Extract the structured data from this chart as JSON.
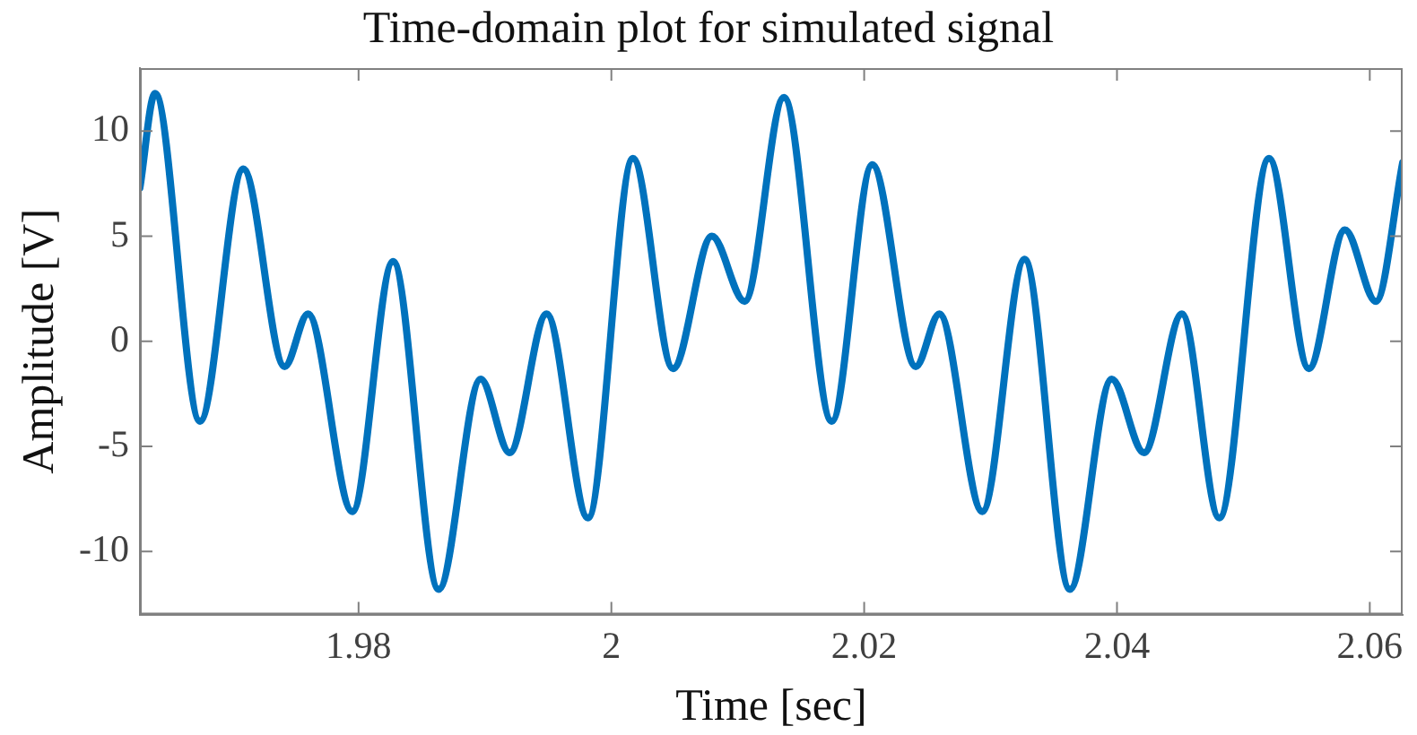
{
  "chart_data": {
    "type": "line",
    "title": "Time-domain plot for simulated signal",
    "xlabel": "Time [sec]",
    "ylabel": "Amplitude [V]",
    "x": [
      1.9627,
      1.9639,
      1.96746,
      1.97088,
      1.97415,
      1.976,
      1.97951,
      1.98273,
      1.98634,
      1.98966,
      1.99195,
      1.99488,
      1.99815,
      2.00171,
      2.00488,
      2.00795,
      2.01055,
      2.01365,
      2.01744,
      2.02064,
      2.02408,
      2.02595,
      2.02935,
      2.03269,
      2.03628,
      2.03958,
      2.04214,
      2.04514,
      2.04809,
      2.05203,
      2.05518,
      2.05803,
      2.06049,
      2.0626
    ],
    "series": [
      {
        "color": "#0072bd",
        "values": [
          7.3,
          11.8,
          -3.8,
          8.2,
          -1.2,
          1.3,
          -8.1,
          3.8,
          -11.8,
          -1.8,
          -5.3,
          1.3,
          -8.4,
          8.7,
          -1.3,
          5.0,
          1.9,
          11.6,
          -3.8,
          8.4,
          -1.2,
          1.3,
          -8.1,
          3.9,
          -11.8,
          -1.8,
          -5.3,
          1.3,
          -8.4,
          8.7,
          -1.3,
          5.3,
          1.9,
          8.5
        ]
      }
    ],
    "xlim": [
      1.9627,
      2.0626
    ],
    "xticks": [
      1.98,
      2,
      2.02,
      2.04,
      2.06
    ],
    "ylim": [
      -13,
      13
    ],
    "yticks": [
      -10,
      -5,
      0,
      5,
      10
    ],
    "marker": "none",
    "line_style": "solid"
  }
}
